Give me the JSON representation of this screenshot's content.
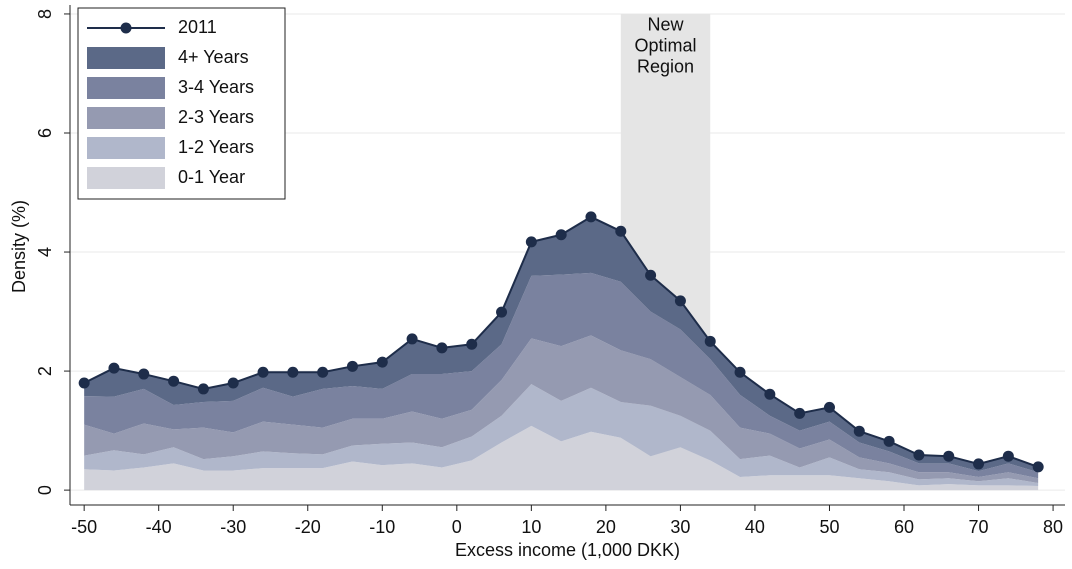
{
  "chart_data": {
    "type": "area",
    "x": [
      -50,
      -46,
      -42,
      -38,
      -34,
      -30,
      -26,
      -22,
      -18,
      -14,
      -10,
      -6,
      -2,
      2,
      6,
      10,
      14,
      18,
      22,
      26,
      30,
      34,
      38,
      42,
      46,
      50,
      54,
      58,
      62,
      66,
      70,
      74,
      78
    ],
    "series": [
      {
        "name": "2011",
        "type": "line",
        "color": "#1e2d4a",
        "values": [
          1.8,
          2.05,
          1.95,
          1.83,
          1.7,
          1.8,
          1.98,
          1.98,
          1.98,
          2.08,
          2.15,
          2.54,
          2.39,
          2.45,
          2.99,
          4.17,
          4.29,
          4.59,
          4.35,
          3.61,
          3.18,
          2.5,
          1.98,
          1.61,
          1.29,
          1.39,
          0.99,
          0.82,
          0.59,
          0.57,
          0.44,
          0.57,
          0.39
        ]
      },
      {
        "name": "4+ Years",
        "color": "#5b6987",
        "values": [
          0.22,
          0.48,
          0.25,
          0.4,
          0.22,
          0.3,
          0.26,
          0.41,
          0.28,
          0.33,
          0.45,
          0.59,
          0.44,
          0.45,
          0.54,
          0.57,
          0.67,
          0.94,
          0.85,
          0.61,
          0.48,
          0.3,
          0.38,
          0.36,
          0.29,
          0.24,
          0.19,
          0.17,
          0.14,
          0.12,
          0.12,
          0.12,
          0.09
        ]
      },
      {
        "name": "3-4 Years",
        "color": "#7a829f",
        "values": [
          0.48,
          0.62,
          0.58,
          0.41,
          0.43,
          0.53,
          0.57,
          0.47,
          0.65,
          0.55,
          0.5,
          0.63,
          0.75,
          0.65,
          0.6,
          1.05,
          1.2,
          1.05,
          1.15,
          0.8,
          0.8,
          0.6,
          0.55,
          0.3,
          0.3,
          0.3,
          0.25,
          0.2,
          0.15,
          0.15,
          0.1,
          0.15,
          0.1
        ]
      },
      {
        "name": "2-3 Years",
        "color": "#959ab1",
        "values": [
          0.52,
          0.28,
          0.52,
          0.3,
          0.53,
          0.4,
          0.5,
          0.48,
          0.45,
          0.45,
          0.42,
          0.52,
          0.48,
          0.45,
          0.6,
          0.77,
          0.92,
          0.88,
          0.87,
          0.78,
          0.65,
          0.6,
          0.53,
          0.37,
          0.32,
          0.3,
          0.2,
          0.15,
          0.12,
          0.1,
          0.07,
          0.1,
          0.08
        ]
      },
      {
        "name": "1-2 Years",
        "color": "#b0b7cb",
        "values": [
          0.23,
          0.34,
          0.22,
          0.27,
          0.19,
          0.24,
          0.28,
          0.25,
          0.23,
          0.27,
          0.36,
          0.35,
          0.34,
          0.4,
          0.45,
          0.7,
          0.68,
          0.74,
          0.6,
          0.85,
          0.53,
          0.5,
          0.3,
          0.33,
          0.13,
          0.3,
          0.15,
          0.15,
          0.1,
          0.1,
          0.07,
          0.12,
          0.05
        ]
      },
      {
        "name": "0-1 Year",
        "color": "#d1d2da",
        "values": [
          0.35,
          0.33,
          0.38,
          0.45,
          0.33,
          0.33,
          0.37,
          0.37,
          0.37,
          0.48,
          0.42,
          0.45,
          0.38,
          0.5,
          0.8,
          1.08,
          0.82,
          0.98,
          0.88,
          0.57,
          0.72,
          0.5,
          0.22,
          0.25,
          0.25,
          0.25,
          0.2,
          0.15,
          0.08,
          0.1,
          0.08,
          0.08,
          0.07
        ]
      }
    ],
    "annotation": {
      "lines": [
        "New",
        "Optimal",
        "Region"
      ],
      "x_range": [
        22,
        34
      ],
      "color": "#e5e5e5"
    },
    "x_label": "Excess income (1,000 DKK)",
    "y_label": "Density (%)",
    "xlim": [
      -51.9,
      81.6
    ],
    "ylim": [
      -0.25,
      8.1
    ],
    "xticks": [
      -50,
      -40,
      -30,
      -20,
      -10,
      0,
      10,
      20,
      30,
      40,
      50,
      60,
      70,
      80
    ],
    "yticks": [
      0,
      2,
      4,
      6,
      8
    ],
    "grid": true,
    "legend": "top-left"
  }
}
